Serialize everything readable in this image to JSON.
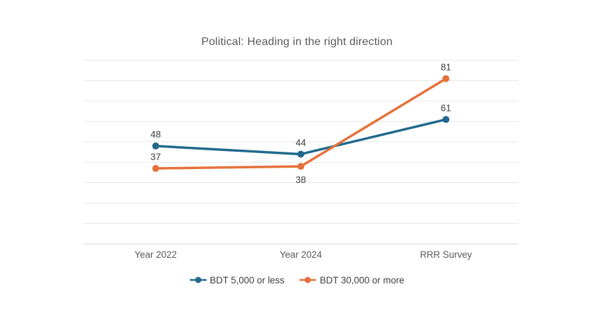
{
  "chart_data": {
    "type": "line",
    "title": "Political: Heading in the right direction",
    "categories": [
      "Year 2022",
      "Year 2024",
      "RRR Survey"
    ],
    "series": [
      {
        "name": "BDT 5,000 or less",
        "color": "#21698C",
        "values": [
          48,
          44,
          61
        ],
        "data_label_positions": [
          "above",
          "above",
          "above"
        ]
      },
      {
        "name": "BDT 30,000 or more",
        "color": "#E5713A",
        "values": [
          37,
          38,
          81
        ],
        "data_label_positions": [
          "above",
          "below",
          "above"
        ]
      }
    ],
    "xlabel": "",
    "ylabel": "",
    "ylim": [
      0,
      90
    ],
    "gridline_step": 10,
    "grid": true,
    "y_axis_tick_labels_visible": false,
    "data_labels_visible": true,
    "legend_position": "bottom",
    "background": "#ffffff",
    "colors": {
      "gridline": "#E7E7E7",
      "axis_line": "#D6D6D6",
      "title_text": "#595959",
      "data_label_text": "#404040",
      "category_label_text": "#595959",
      "legend_text": "#404040"
    }
  }
}
